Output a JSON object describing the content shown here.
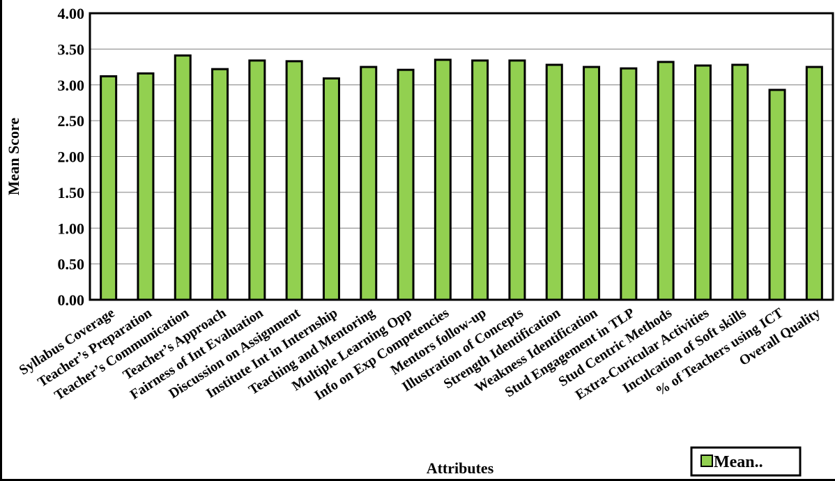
{
  "chart_data": {
    "type": "bar",
    "title": "",
    "xlabel": "Attributes",
    "ylabel": "Mean Score",
    "ylim": [
      0,
      4
    ],
    "yticks": [
      "0.00",
      "0.50",
      "1.00",
      "1.50",
      "2.00",
      "2.50",
      "3.00",
      "3.50",
      "4.00"
    ],
    "grid": true,
    "legend_position": "bottom-right",
    "bar_color": "#92d050",
    "categories": [
      "Syllabus Coverage",
      "Teacher’s Preparation",
      "Teacher’s Communication",
      "Teacher’s Approach",
      "Fairness of Int Evaluation",
      "Discussion on Assignment",
      "Institute Int in Internship",
      "Teaching and Mentoring",
      "Multiple Learning Opp",
      "Info on Exp Competencies",
      "Mentors follow-up",
      "Illustration of Concepts",
      "Strength Identification",
      "Weakness Identification",
      "Stud Engagement in TLP",
      "Stud Centric Methods",
      "Extra-Curicular Activities",
      "Inculcation of Soft skills",
      "% of Teachers using ICT",
      "Overall Quality"
    ],
    "series": [
      {
        "name": "Mean..",
        "values": [
          3.12,
          3.16,
          3.41,
          3.22,
          3.34,
          3.33,
          3.09,
          3.25,
          3.21,
          3.35,
          3.34,
          3.34,
          3.28,
          3.25,
          3.23,
          3.32,
          3.27,
          3.28,
          2.93,
          3.25
        ]
      }
    ]
  }
}
